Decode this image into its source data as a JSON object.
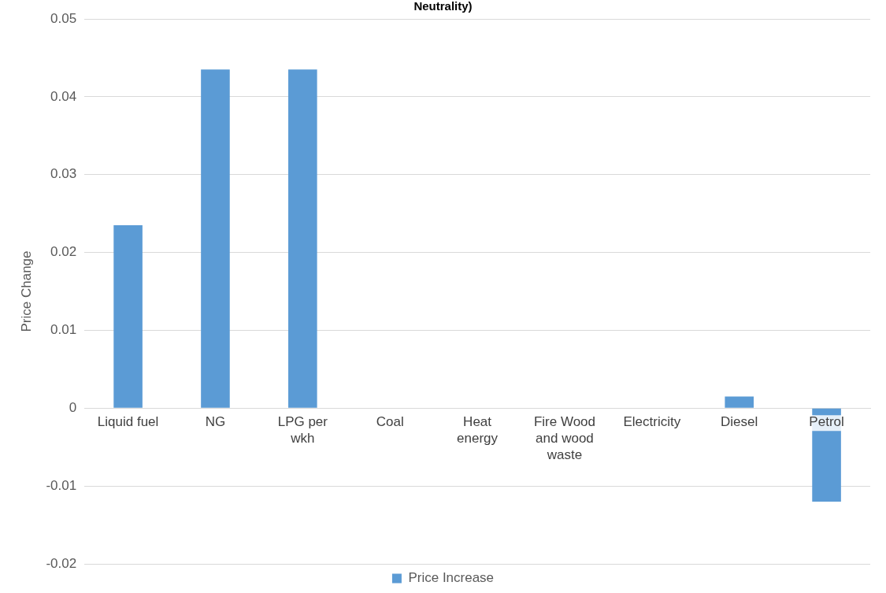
{
  "chart_data": {
    "type": "bar",
    "title": "Neutrality)",
    "ylabel": "Price Change",
    "categories": [
      "Liquid fuel",
      "NG",
      "LPG per wkh",
      "Coal",
      "Heat energy",
      "Fire Wood and wood waste",
      "Electricity",
      "Diesel",
      "Petrol"
    ],
    "series": [
      {
        "name": "Price Increase",
        "color": "#5b9bd5",
        "values": [
          0.0235,
          0.0435,
          0.0435,
          0,
          0,
          0,
          0,
          0.0015,
          -0.012
        ]
      }
    ],
    "ylim": [
      -0.02,
      0.05
    ],
    "yticks": [
      -0.02,
      -0.01,
      0,
      0.01,
      0.02,
      0.03,
      0.04,
      0.05
    ],
    "grid": "y",
    "legend": "bottom"
  }
}
